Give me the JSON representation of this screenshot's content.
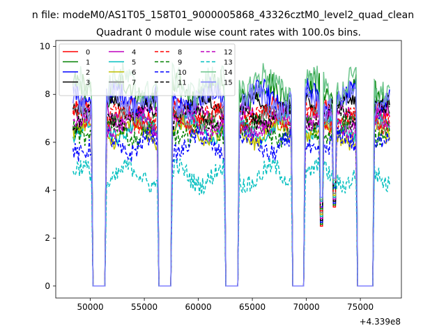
{
  "figure": {
    "suptitle": "n file: modeM0/AS1T05_158T01_9000005868_43326cztM0_level2_quad_clean",
    "title": "Quadrant 0 module wise count rates with 100.0s bins.",
    "offset_label": "+4.339e8"
  },
  "chart_data": {
    "type": "line",
    "title": "Quadrant 0 module wise count rates with 100.0s bins.",
    "xlabel": "",
    "ylabel": "",
    "x_offset": 433900000,
    "xlim": [
      46800,
      78800
    ],
    "ylim": [
      -0.5,
      10.25
    ],
    "xticks": [
      50000,
      55000,
      60000,
      65000,
      70000,
      75000
    ],
    "yticks": [
      0,
      2,
      4,
      6,
      8,
      10
    ],
    "grid": false,
    "legend_position": "top-left",
    "legend_ncol": 4,
    "segments": [
      [
        48400,
        50100
      ],
      [
        51500,
        56200
      ],
      [
        57600,
        62400
      ],
      [
        63800,
        68600
      ],
      [
        69900,
        74600
      ],
      [
        76300,
        77700
      ]
    ],
    "gaps": [
      [
        50250,
        51350
      ],
      [
        56350,
        57450
      ],
      [
        62550,
        63650
      ],
      [
        68750,
        69750
      ],
      [
        74750,
        76150
      ]
    ],
    "dips": [
      [
        71400,
        2.5
      ],
      [
        72600,
        3.3
      ]
    ],
    "series": [
      {
        "name": "0",
        "color": "#ff0000",
        "dash": "solid",
        "base": 7.2,
        "amp": 0.35
      },
      {
        "name": "1",
        "color": "#008000",
        "dash": "solid",
        "base": 8.1,
        "amp": 0.55
      },
      {
        "name": "2",
        "color": "#0000ff",
        "dash": "solid",
        "base": 7.8,
        "amp": 0.5
      },
      {
        "name": "3",
        "color": "#000000",
        "dash": "solid",
        "base": 7.5,
        "amp": 0.3
      },
      {
        "name": "4",
        "color": "#bf00bf",
        "dash": "solid",
        "base": 7.0,
        "amp": 0.35
      },
      {
        "name": "5",
        "color": "#00bfbf",
        "dash": "solid",
        "base": 6.6,
        "amp": 0.3
      },
      {
        "name": "6",
        "color": "#bfbf00",
        "dash": "solid",
        "base": 6.4,
        "amp": 0.35
      },
      {
        "name": "7",
        "color": "#808080",
        "dash": "solid",
        "base": 6.9,
        "amp": 0.3
      },
      {
        "name": "8",
        "color": "#ff0000",
        "dash": "dashed",
        "base": 7.0,
        "amp": 0.35
      },
      {
        "name": "9",
        "color": "#008000",
        "dash": "dashed",
        "base": 6.5,
        "amp": 0.4
      },
      {
        "name": "10",
        "color": "#0000ff",
        "dash": "dashed",
        "base": 5.9,
        "amp": 0.4
      },
      {
        "name": "11",
        "color": "#000000",
        "dash": "dashed",
        "base": 7.1,
        "amp": 0.35
      },
      {
        "name": "12",
        "color": "#bf00bf",
        "dash": "dashed",
        "base": 6.8,
        "amp": 0.35
      },
      {
        "name": "13",
        "color": "#00bfbf",
        "dash": "dashed",
        "base": 4.6,
        "amp": 0.4
      },
      {
        "name": "14",
        "color": "#6bc48a",
        "dash": "solid",
        "base": 8.4,
        "amp": 0.6
      },
      {
        "name": "15",
        "color": "#8080ff",
        "dash": "solid",
        "base": 7.7,
        "amp": 0.5
      }
    ]
  }
}
